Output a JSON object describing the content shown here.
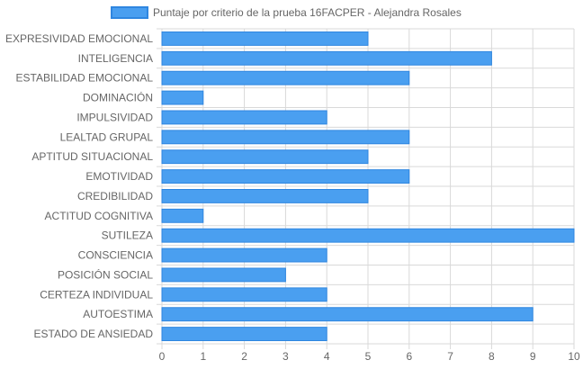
{
  "chart_data": {
    "type": "bar",
    "orientation": "horizontal",
    "categories": [
      "EXPRESIVIDAD EMOCIONAL",
      "INTELIGENCIA",
      "ESTABILIDAD EMOCIONAL",
      "DOMINACIÓN",
      "IMPULSIVIDAD",
      "LEALTAD GRUPAL",
      "APTITUD SITUACIONAL",
      "EMOTIVIDAD",
      "CREDIBILIDAD",
      "ACTITUD COGNITIVA",
      "SUTILEZA",
      "CONSCIENCIA",
      "POSICIÓN SOCIAL",
      "CERTEZA INDIVIDUAL",
      "AUTOESTIMA",
      "ESTADO DE ANSIEDAD"
    ],
    "series": [
      {
        "name": "Puntaje por criterio de la prueba 16FACPER - Alejandra Rosales",
        "values": [
          5,
          8,
          6,
          1,
          4,
          6,
          5,
          6,
          5,
          1,
          10,
          4,
          3,
          4,
          9,
          4
        ]
      }
    ],
    "xlim": [
      0,
      10
    ],
    "xticks": [
      "0",
      "1",
      "2",
      "3",
      "4",
      "5",
      "6",
      "7",
      "8",
      "9",
      "10"
    ],
    "grid": true,
    "legend_position": "top",
    "colors": {
      "bar_fill": "#4a9ff0",
      "bar_stroke": "#2f86e0",
      "grid": "#d9d9d9",
      "text": "#666666"
    }
  }
}
